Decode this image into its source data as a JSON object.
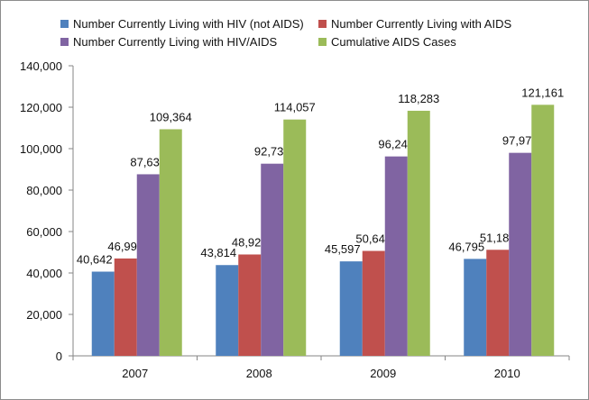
{
  "chart_data": {
    "type": "bar",
    "categories": [
      "2007",
      "2008",
      "2009",
      "2010"
    ],
    "series": [
      {
        "name": "Number Currently Living with HIV (not AIDS)",
        "color": "#4f81bd",
        "values": [
          40642,
          43814,
          45597,
          46795
        ],
        "labels": [
          "40,642",
          "43,814",
          "45,597",
          "46,795"
        ]
      },
      {
        "name": "Number Currently Living with AIDS",
        "color": "#c0504d",
        "values": [
          46996,
          48924,
          50644,
          51183
        ],
        "labels": [
          "46,996",
          "48,924",
          "50,644",
          "51,183"
        ]
      },
      {
        "name": "Number Currently Living with HIV/AIDS",
        "color": "#8064a2",
        "values": [
          87638,
          92738,
          96241,
          97978
        ],
        "labels": [
          "87,638",
          "92,738",
          "96,241",
          "97,978"
        ]
      },
      {
        "name": "Cumulative AIDS Cases",
        "color": "#9bbb59",
        "values": [
          109364,
          114057,
          118283,
          121161
        ],
        "labels": [
          "109,364",
          "114,057",
          "118,283",
          "121,161"
        ]
      }
    ],
    "ylim": [
      0,
      140000
    ],
    "yticks": [
      0,
      20000,
      40000,
      60000,
      80000,
      100000,
      120000,
      140000
    ],
    "ytick_labels": [
      "0",
      "20,000",
      "40,000",
      "60,000",
      "80,000",
      "100,000",
      "120,000",
      "140,000"
    ],
    "grid": false,
    "legend_position": "top"
  }
}
